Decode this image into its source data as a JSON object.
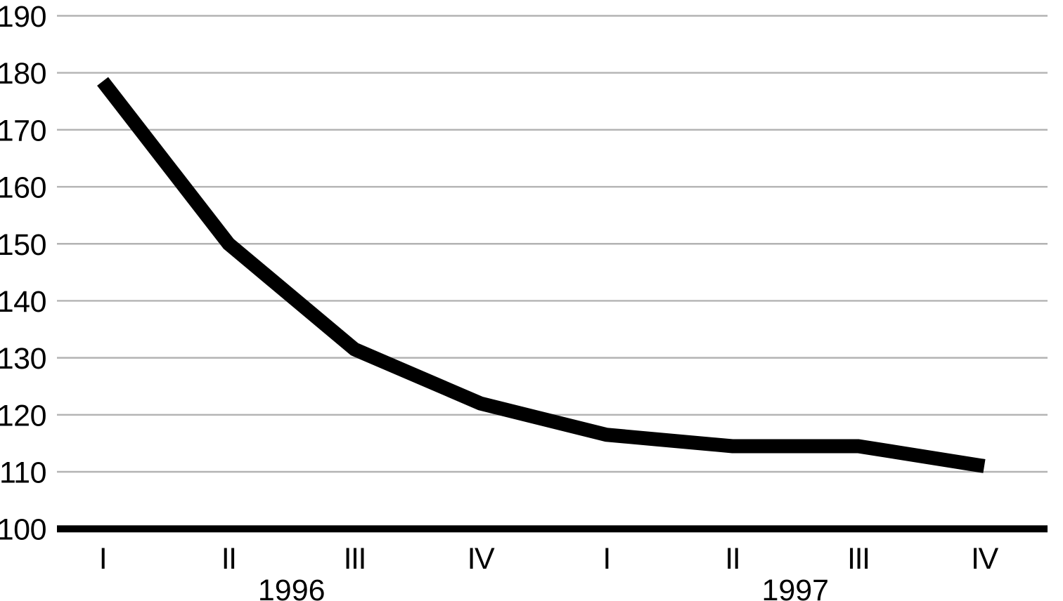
{
  "chart_data": {
    "type": "line",
    "title": "",
    "xlabel": "",
    "ylabel": "",
    "categories": [
      "I",
      "II",
      "III",
      "IV",
      "I",
      "II",
      "III",
      "IV"
    ],
    "year_groups": [
      {
        "label": "1996",
        "quarters": [
          0,
          1,
          2,
          3
        ]
      },
      {
        "label": "1997",
        "quarters": [
          4,
          5,
          6,
          7
        ]
      }
    ],
    "series": [
      {
        "name": "value",
        "values": [
          178.5,
          150,
          131.5,
          122,
          116.5,
          114.5,
          114.5,
          111
        ]
      }
    ],
    "ylim": [
      100,
      190
    ],
    "yticks": [
      100,
      110,
      120,
      130,
      140,
      150,
      160,
      170,
      180,
      190
    ],
    "baseline_value": 100,
    "grid": "horizontal",
    "legend": "none",
    "line_color": "#000000",
    "baseline_color": "#000000",
    "gridline_color": "#b3b3b3"
  }
}
